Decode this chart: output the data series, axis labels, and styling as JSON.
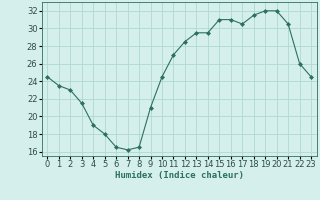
{
  "x": [
    0,
    1,
    2,
    3,
    4,
    5,
    6,
    7,
    8,
    9,
    10,
    11,
    12,
    13,
    14,
    15,
    16,
    17,
    18,
    19,
    20,
    21,
    22,
    23
  ],
  "y": [
    24.5,
    23.5,
    23.0,
    21.5,
    19.0,
    18.0,
    16.5,
    16.2,
    16.5,
    21.0,
    24.5,
    27.0,
    28.5,
    29.5,
    29.5,
    31.0,
    31.0,
    30.5,
    31.5,
    32.0,
    32.0,
    30.5,
    26.0,
    24.5
  ],
  "line_color": "#2d7060",
  "marker": "D",
  "marker_size": 2.0,
  "bg_color": "#d4efec",
  "grid_color": "#b0d8d4",
  "xlabel": "Humidex (Indice chaleur)",
  "ylim": [
    15.5,
    33.0
  ],
  "xlim": [
    -0.5,
    23.5
  ],
  "yticks": [
    16,
    18,
    20,
    22,
    24,
    26,
    28,
    30,
    32
  ],
  "xticks": [
    0,
    1,
    2,
    3,
    4,
    5,
    6,
    7,
    8,
    9,
    10,
    11,
    12,
    13,
    14,
    15,
    16,
    17,
    18,
    19,
    20,
    21,
    22,
    23
  ],
  "xlabel_fontsize": 6.5,
  "tick_fontsize": 6.0
}
